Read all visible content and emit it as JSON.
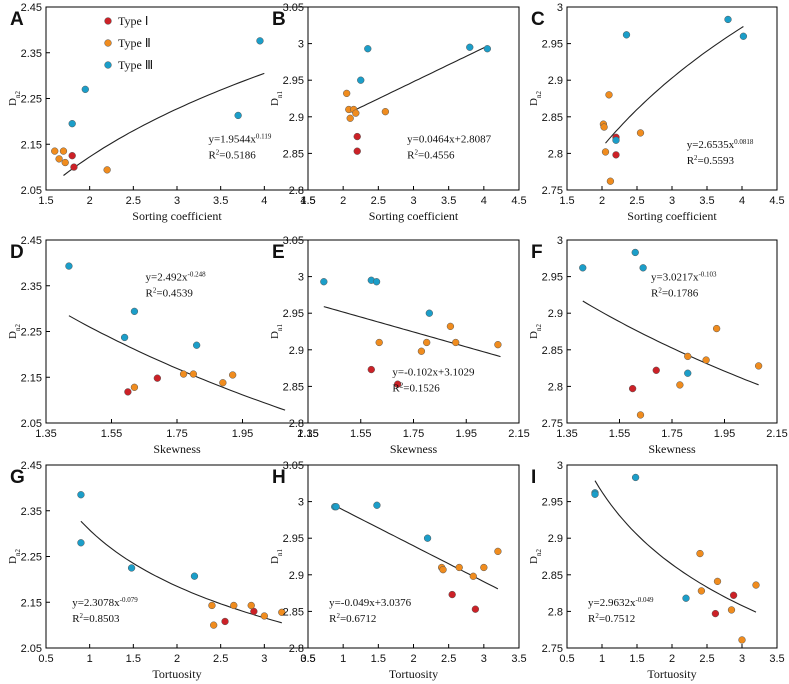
{
  "colors": {
    "type1": "#cc2127",
    "type2": "#f08c1e",
    "type3": "#1b9ec9",
    "marker_edge": "#555555",
    "fit_line": "#222222",
    "axis": "#000000"
  },
  "legend": {
    "items": [
      {
        "label": "Type Ⅰ",
        "series": "type1"
      },
      {
        "label": "Type Ⅱ",
        "series": "type2"
      },
      {
        "label": "Type Ⅲ",
        "series": "type3"
      }
    ]
  },
  "chart_data": [
    {
      "panel": "A",
      "type": "scatter",
      "xlabel": "Sorting coefficient",
      "ylabel_base": "D",
      "ylabel_sub": "n2",
      "xlim": [
        1.5,
        4.5
      ],
      "ylim": [
        2.05,
        2.45
      ],
      "xticks": [
        1.5,
        2,
        2.5,
        3,
        3.5,
        4,
        4.5
      ],
      "yticks": [
        2.05,
        2.15,
        2.25,
        2.35,
        2.45
      ],
      "series": [
        {
          "name": "type1",
          "points": [
            [
              1.8,
              2.125
            ],
            [
              1.82,
              2.1
            ]
          ]
        },
        {
          "name": "type2",
          "points": [
            [
              1.6,
              2.135
            ],
            [
              1.65,
              2.118
            ],
            [
              1.7,
              2.135
            ],
            [
              1.72,
              2.11
            ],
            [
              2.2,
              2.094
            ]
          ]
        },
        {
          "name": "type3",
          "points": [
            [
              1.8,
              2.195
            ],
            [
              1.95,
              2.27
            ],
            [
              3.7,
              2.213
            ],
            [
              3.95,
              2.376
            ]
          ]
        }
      ],
      "fit": {
        "kind": "power",
        "a": 1.9544,
        "b": 0.119,
        "x_range": [
          1.7,
          4.0
        ]
      },
      "equation": "y=1.9544x",
      "equation_exp": "0.119",
      "r2_label": "R",
      "r2_value": "=0.5186",
      "legend": true
    },
    {
      "panel": "B",
      "type": "scatter",
      "xlabel": "Sorting coefficient",
      "ylabel_base": "D",
      "ylabel_sub": "n1",
      "xlim": [
        1.5,
        4.5
      ],
      "ylim": [
        2.8,
        3.05
      ],
      "xticks": [
        1.5,
        2,
        2.5,
        3,
        3.5,
        4,
        4.5
      ],
      "yticks": [
        2.8,
        2.85,
        2.9,
        2.95,
        3,
        3.05
      ],
      "series": [
        {
          "name": "type1",
          "points": [
            [
              2.2,
              2.873
            ],
            [
              2.2,
              2.853
            ]
          ]
        },
        {
          "name": "type2",
          "points": [
            [
              2.05,
              2.932
            ],
            [
              2.08,
              2.91
            ],
            [
              2.1,
              2.898
            ],
            [
              2.15,
              2.91
            ],
            [
              2.18,
              2.905
            ],
            [
              2.6,
              2.907
            ]
          ]
        },
        {
          "name": "type3",
          "points": [
            [
              2.25,
              2.95
            ],
            [
              2.35,
              2.993
            ],
            [
              3.8,
              2.995
            ],
            [
              4.05,
              2.993
            ]
          ]
        }
      ],
      "fit": {
        "kind": "linear",
        "a": 0.0464,
        "b": 2.8087,
        "x_range": [
          2.1,
          4.05
        ]
      },
      "equation": "y=0.0464x+2.8087",
      "r2_label": "R",
      "r2_value": "=0.4556"
    },
    {
      "panel": "C",
      "type": "scatter",
      "xlabel": "Sorting coefficient",
      "ylabel_base": "D",
      "ylabel_sub": "n2",
      "xlim": [
        1.5,
        4.5
      ],
      "ylim": [
        2.75,
        3.0
      ],
      "xticks": [
        1.5,
        2,
        2.5,
        3,
        3.5,
        4,
        4.5
      ],
      "yticks": [
        2.75,
        2.8,
        2.85,
        2.9,
        2.95,
        3
      ],
      "series": [
        {
          "name": "type1",
          "points": [
            [
              2.2,
              2.822
            ],
            [
              2.2,
              2.798
            ]
          ]
        },
        {
          "name": "type2",
          "points": [
            [
              2.02,
              2.84
            ],
            [
              2.03,
              2.836
            ],
            [
              2.05,
              2.802
            ],
            [
              2.1,
              2.88
            ],
            [
              2.12,
              2.762
            ],
            [
              2.55,
              2.828
            ]
          ]
        },
        {
          "name": "type3",
          "points": [
            [
              2.2,
              2.818
            ],
            [
              2.35,
              2.962
            ],
            [
              3.8,
              2.983
            ],
            [
              4.02,
              2.96
            ]
          ]
        }
      ],
      "fit": {
        "kind": "power",
        "a": 2.6535,
        "b": 0.0818,
        "x_range": [
          2.05,
          4.02
        ]
      },
      "equation": "y=2.6535x",
      "equation_exp": "0.0818",
      "r2_label": "R",
      "r2_value": "=0.5593"
    },
    {
      "panel": "D",
      "type": "scatter",
      "xlabel": "Skewness",
      "ylabel_base": "D",
      "ylabel_sub": "n2",
      "xlim": [
        1.35,
        2.15
      ],
      "ylim": [
        2.05,
        2.45
      ],
      "xticks": [
        1.35,
        1.55,
        1.75,
        1.95,
        2.15
      ],
      "yticks": [
        2.05,
        2.15,
        2.25,
        2.35,
        2.45
      ],
      "series": [
        {
          "name": "type1",
          "points": [
            [
              1.6,
              2.118
            ],
            [
              1.69,
              2.148
            ]
          ]
        },
        {
          "name": "type2",
          "points": [
            [
              1.62,
              2.128
            ],
            [
              1.77,
              2.157
            ],
            [
              1.8,
              2.157
            ],
            [
              1.89,
              2.138
            ],
            [
              1.92,
              2.155
            ]
          ]
        },
        {
          "name": "type3",
          "points": [
            [
              1.42,
              2.393
            ],
            [
              1.59,
              2.237
            ],
            [
              1.62,
              2.294
            ],
            [
              1.81,
              2.22
            ]
          ]
        }
      ],
      "fit": {
        "kind": "power",
        "a": 2.492,
        "b": -0.248,
        "x_range": [
          1.42,
          2.08
        ]
      },
      "equation": "y=2.492x",
      "equation_exp": "-0.248",
      "r2_label": "R",
      "r2_value": "=0.4539"
    },
    {
      "panel": "E",
      "type": "scatter",
      "xlabel": "Skewness",
      "ylabel_base": "D",
      "ylabel_sub": "n1",
      "xlim": [
        1.35,
        2.15
      ],
      "ylim": [
        2.8,
        3.05
      ],
      "xticks": [
        1.35,
        1.55,
        1.75,
        1.95,
        2.15
      ],
      "yticks": [
        2.8,
        2.85,
        2.9,
        2.95,
        3,
        3.05
      ],
      "series": [
        {
          "name": "type1",
          "points": [
            [
              1.59,
              2.873
            ],
            [
              1.69,
              2.853
            ]
          ]
        },
        {
          "name": "type2",
          "points": [
            [
              1.62,
              2.91
            ],
            [
              1.78,
              2.898
            ],
            [
              1.8,
              2.91
            ],
            [
              1.89,
              2.932
            ],
            [
              1.91,
              2.91
            ],
            [
              2.07,
              2.907
            ]
          ]
        },
        {
          "name": "type3",
          "points": [
            [
              1.41,
              2.993
            ],
            [
              1.59,
              2.995
            ],
            [
              1.61,
              2.993
            ],
            [
              1.81,
              2.95
            ]
          ]
        }
      ],
      "fit": {
        "kind": "linear",
        "a": -0.102,
        "b": 3.1029,
        "x_range": [
          1.41,
          2.08
        ]
      },
      "equation": "y=-0.102x+3.1029",
      "r2_label": "R",
      "r2_value": "=0.1526"
    },
    {
      "panel": "F",
      "type": "scatter",
      "xlabel": "Skewness",
      "ylabel_base": "D",
      "ylabel_sub": "n2",
      "xlim": [
        1.35,
        2.15
      ],
      "ylim": [
        2.75,
        3.0
      ],
      "xticks": [
        1.35,
        1.55,
        1.75,
        1.95,
        2.15
      ],
      "yticks": [
        2.75,
        2.8,
        2.85,
        2.9,
        2.95,
        3
      ],
      "series": [
        {
          "name": "type1",
          "points": [
            [
              1.6,
              2.797
            ],
            [
              1.69,
              2.822
            ]
          ]
        },
        {
          "name": "type2",
          "points": [
            [
              1.63,
              2.761
            ],
            [
              1.78,
              2.802
            ],
            [
              1.81,
              2.841
            ],
            [
              1.88,
              2.836
            ],
            [
              1.92,
              2.879
            ],
            [
              2.08,
              2.828
            ]
          ]
        },
        {
          "name": "type3",
          "points": [
            [
              1.41,
              2.962
            ],
            [
              1.61,
              2.983
            ],
            [
              1.64,
              2.962
            ],
            [
              1.81,
              2.818
            ]
          ]
        }
      ],
      "fit": {
        "kind": "power",
        "a": 3.0217,
        "b": -0.103,
        "x_range": [
          1.41,
          2.08
        ]
      },
      "equation": "y=3.0217x",
      "equation_exp": "-0.103",
      "r2_label": "R",
      "r2_value": "=0.1786"
    },
    {
      "panel": "G",
      "type": "scatter",
      "xlabel": "Tortuosity",
      "ylabel_base": "D",
      "ylabel_sub": "n2",
      "xlim": [
        0.5,
        3.5
      ],
      "ylim": [
        2.05,
        2.45
      ],
      "xticks": [
        0.5,
        1,
        1.5,
        2,
        2.5,
        3,
        3.5
      ],
      "yticks": [
        2.05,
        2.15,
        2.25,
        2.35,
        2.45
      ],
      "series": [
        {
          "name": "type1",
          "points": [
            [
              2.55,
              2.108
            ],
            [
              2.88,
              2.13
            ]
          ]
        },
        {
          "name": "type2",
          "points": [
            [
              2.4,
              2.143
            ],
            [
              2.42,
              2.1
            ],
            [
              2.65,
              2.143
            ],
            [
              2.85,
              2.143
            ],
            [
              3.0,
              2.12
            ],
            [
              3.2,
              2.128
            ]
          ]
        },
        {
          "name": "type3",
          "points": [
            [
              0.9,
              2.385
            ],
            [
              0.9,
              2.28
            ],
            [
              1.48,
              2.225
            ],
            [
              2.2,
              2.207
            ]
          ]
        }
      ],
      "fit": {
        "kind": "power",
        "a": 2.3078,
        "b": -0.079,
        "x_range": [
          0.9,
          3.2
        ]
      },
      "equation": "y=2.3078x",
      "equation_exp": "-0.079",
      "r2_label": "R",
      "r2_value": "=0.8503"
    },
    {
      "panel": "H",
      "type": "scatter",
      "xlabel": "Tortuosity",
      "ylabel_base": "D",
      "ylabel_sub": "n1",
      "xlim": [
        0.5,
        3.5
      ],
      "ylim": [
        2.8,
        3.05
      ],
      "xticks": [
        0.5,
        1,
        1.5,
        2,
        2.5,
        3,
        3.5
      ],
      "yticks": [
        2.8,
        2.85,
        2.9,
        2.95,
        3,
        3.05
      ],
      "series": [
        {
          "name": "type1",
          "points": [
            [
              2.55,
              2.873
            ],
            [
              2.88,
              2.853
            ]
          ]
        },
        {
          "name": "type2",
          "points": [
            [
              2.4,
              2.91
            ],
            [
              2.42,
              2.907
            ],
            [
              2.65,
              2.91
            ],
            [
              2.85,
              2.898
            ],
            [
              3.0,
              2.91
            ],
            [
              3.2,
              2.932
            ]
          ]
        },
        {
          "name": "type3",
          "points": [
            [
              0.88,
              2.993
            ],
            [
              0.9,
              2.993
            ],
            [
              1.48,
              2.995
            ],
            [
              2.2,
              2.95
            ]
          ]
        }
      ],
      "fit": {
        "kind": "linear",
        "a": -0.049,
        "b": 3.0376,
        "x_range": [
          0.9,
          3.2
        ]
      },
      "equation": "y=-0.049x+3.0376",
      "r2_label": "R",
      "r2_value": "=0.6712"
    },
    {
      "panel": "I",
      "type": "scatter",
      "xlabel": "Tortuosity",
      "ylabel_base": "D",
      "ylabel_sub": "n2",
      "xlim": [
        0.5,
        3.5
      ],
      "ylim": [
        2.75,
        3.0
      ],
      "xticks": [
        0.5,
        1,
        1.5,
        2,
        2.5,
        3,
        3.5
      ],
      "yticks": [
        2.75,
        2.8,
        2.85,
        2.9,
        2.95,
        3
      ],
      "series": [
        {
          "name": "type1",
          "points": [
            [
              2.62,
              2.797
            ],
            [
              2.88,
              2.822
            ]
          ]
        },
        {
          "name": "type2",
          "points": [
            [
              2.4,
              2.879
            ],
            [
              2.42,
              2.828
            ],
            [
              2.65,
              2.841
            ],
            [
              2.85,
              2.802
            ],
            [
              3.0,
              2.761
            ],
            [
              3.2,
              2.836
            ]
          ]
        },
        {
          "name": "type3",
          "points": [
            [
              0.9,
              2.962
            ],
            [
              0.9,
              2.96
            ],
            [
              1.48,
              2.983
            ],
            [
              2.2,
              2.818
            ]
          ]
        }
      ],
      "fit": {
        "kind": "power",
        "a": 2.9632,
        "b": -0.049,
        "x_range": [
          0.9,
          3.2
        ]
      },
      "equation": "y=2.9632x",
      "equation_exp": "-0.049",
      "r2_label": "R",
      "r2_value": "=0.7512"
    }
  ]
}
